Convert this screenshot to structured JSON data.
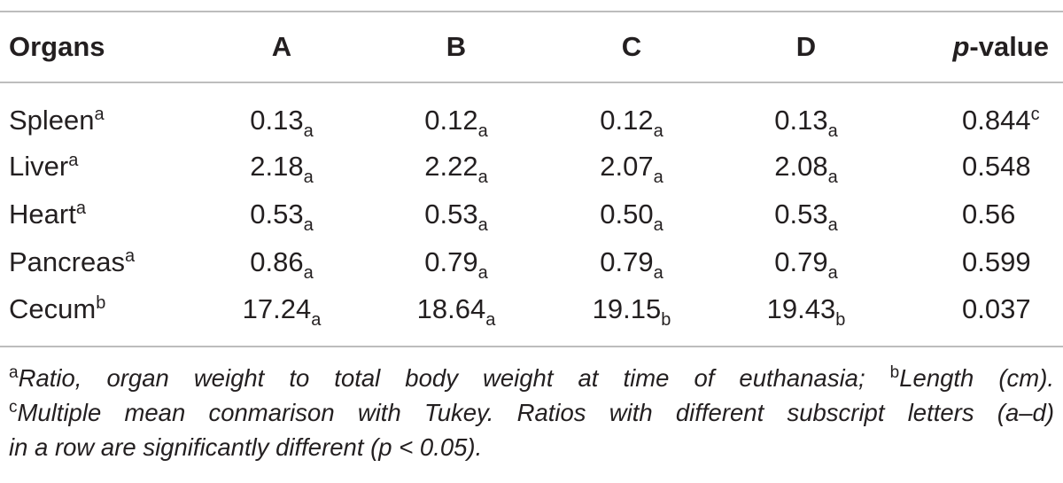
{
  "table": {
    "headers": [
      "Organs",
      "A",
      "B",
      "C",
      "D",
      "p-value"
    ],
    "header_pvalue_italic": "p",
    "header_pvalue_rest": "-value",
    "rows": [
      {
        "organ": "Spleen",
        "organ_sup": "a",
        "A": "0.13",
        "A_sub": "a",
        "B": "0.12",
        "B_sub": "a",
        "C": "0.12",
        "C_sub": "a",
        "D": "0.13",
        "D_sub": "a",
        "p": "0.844",
        "p_sup": "c"
      },
      {
        "organ": "Liver",
        "organ_sup": "a",
        "A": "2.18",
        "A_sub": "a",
        "B": "2.22",
        "B_sub": "a",
        "C": "2.07",
        "C_sub": "a",
        "D": "2.08",
        "D_sub": "a",
        "p": "0.548",
        "p_sup": ""
      },
      {
        "organ": "Heart",
        "organ_sup": "a",
        "A": "0.53",
        "A_sub": "a",
        "B": "0.53",
        "B_sub": "a",
        "C": "0.50",
        "C_sub": "a",
        "D": "0.53",
        "D_sub": "a",
        "p": "0.56",
        "p_sup": ""
      },
      {
        "organ": "Pancreas",
        "organ_sup": "a",
        "A": "0.86",
        "A_sub": "a",
        "B": "0.79",
        "B_sub": "a",
        "C": "0.79",
        "C_sub": "a",
        "D": "0.79",
        "D_sub": "a",
        "p": "0.599",
        "p_sup": ""
      },
      {
        "organ": "Cecum",
        "organ_sup": "b",
        "A": "17.24",
        "A_sub": "a",
        "B": "18.64",
        "B_sub": "a",
        "C": "19.15",
        "C_sub": "b",
        "D": "19.43",
        "D_sub": "b",
        "p": "0.037",
        "p_sup": ""
      }
    ]
  },
  "footnotes": {
    "a_mark": "a",
    "a_text": "Ratio, organ weight to total body weight at time of euthanasia; ",
    "b_mark": "b",
    "b_text": "Length (cm).",
    "c_mark": "c",
    "c_text_line1": "Multiple mean conmarison with Tukey. Ratios with different subscript letters (a–d)",
    "c_text_line2": "in a row are significantly different (p < 0.05)."
  }
}
